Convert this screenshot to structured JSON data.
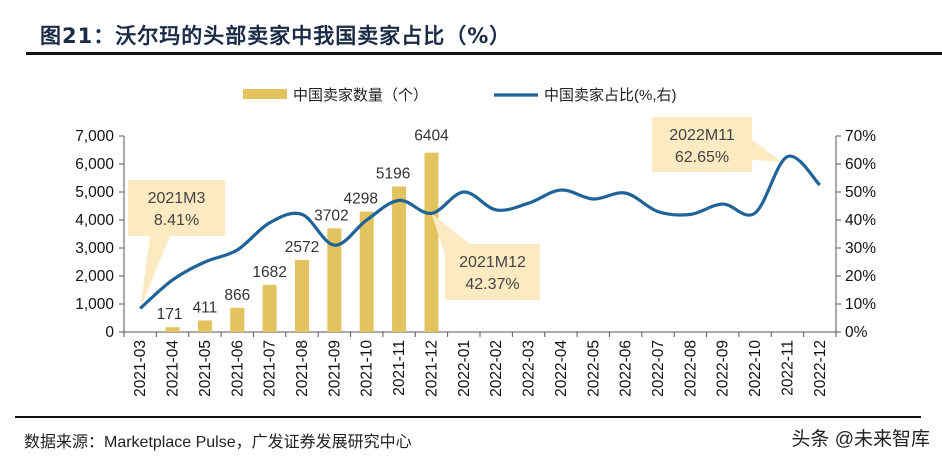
{
  "title": "图21：沃尔玛的头部卖家中我国卖家占比（%）",
  "source": "数据来源：Marketplace Pulse，广发证券发展研究中心",
  "watermark": "头条 @未来智库",
  "chart_data": {
    "type": "bar+line",
    "categories": [
      "2021-03",
      "2021-04",
      "2021-05",
      "2021-06",
      "2021-07",
      "2021-08",
      "2021-09",
      "2021-10",
      "2021-11",
      "2021-12",
      "2022-01",
      "2022-02",
      "2022-03",
      "2022-04",
      "2022-05",
      "2022-06",
      "2022-07",
      "2022-08",
      "2022-09",
      "2022-10",
      "2022-11",
      "2022-12"
    ],
    "series": [
      {
        "name": "中国卖家数量（个）",
        "type": "bar",
        "axis": "left",
        "color": "#E2C35E",
        "values": [
          null,
          171,
          411,
          866,
          1682,
          2572,
          3702,
          4298,
          5196,
          6404,
          null,
          null,
          null,
          null,
          null,
          null,
          null,
          null,
          null,
          null,
          null,
          null
        ],
        "data_labels": [
          "",
          "171",
          "411",
          "866",
          "1682",
          "2572",
          "3702",
          "4298",
          "5196",
          "6404",
          "",
          "",
          "",
          "",
          "",
          "",
          "",
          "",
          "",
          "",
          "",
          ""
        ]
      },
      {
        "name": "中国卖家占比(%,右)",
        "type": "line",
        "axis": "right",
        "color": "#1F6399",
        "values": [
          8.41,
          18.6,
          25.0,
          29.3,
          39.0,
          42.0,
          31.0,
          40.0,
          47.0,
          42.37,
          50.0,
          43.6,
          46.0,
          50.7,
          47.5,
          49.6,
          43.0,
          42.0,
          45.7,
          42.5,
          62.65,
          52.5
        ]
      }
    ],
    "left_axis": {
      "ylim": [
        0,
        7000
      ],
      "ticks": [
        "0",
        "1,000",
        "2,000",
        "3,000",
        "4,000",
        "5,000",
        "6,000",
        "7,000"
      ]
    },
    "right_axis": {
      "ylim": [
        0,
        70
      ],
      "ticks": [
        "0%",
        "10%",
        "20%",
        "30%",
        "40%",
        "50%",
        "60%",
        "70%"
      ]
    },
    "legend_position": "top",
    "grid": false,
    "annotations": [
      {
        "label": "2021M3",
        "value": "8.41%",
        "category": "2021-03"
      },
      {
        "label": "2021M12",
        "value": "42.37%",
        "category": "2021-12"
      },
      {
        "label": "2022M11",
        "value": "62.65%",
        "category": "2022-11"
      }
    ],
    "callout_color": "#FCEBC2"
  }
}
